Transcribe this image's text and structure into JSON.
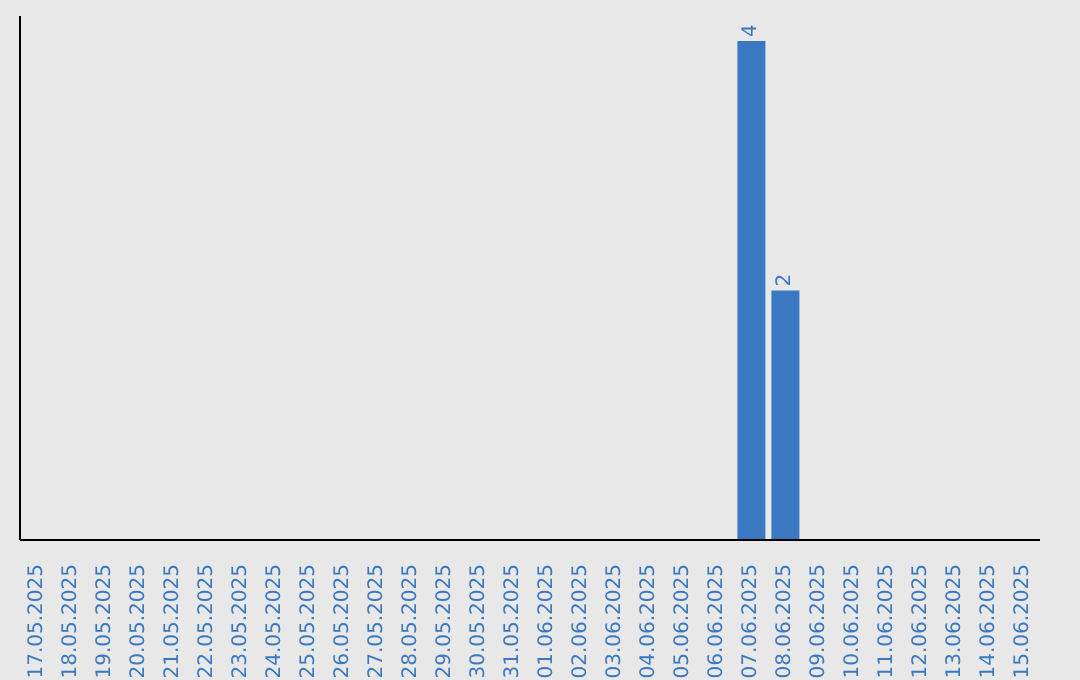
{
  "chart_data": {
    "type": "bar",
    "categories": [
      "17.05.2025",
      "18.05.2025",
      "19.05.2025",
      "20.05.2025",
      "21.05.2025",
      "22.05.2025",
      "23.05.2025",
      "24.05.2025",
      "25.05.2025",
      "26.05.2025",
      "27.05.2025",
      "28.05.2025",
      "29.05.2025",
      "30.05.2025",
      "31.05.2025",
      "01.06.2025",
      "02.06.2025",
      "03.06.2025",
      "04.06.2025",
      "05.06.2025",
      "06.06.2025",
      "07.06.2025",
      "08.06.2025",
      "09.06.2025",
      "10.06.2025",
      "11.06.2025",
      "12.06.2025",
      "13.06.2025",
      "14.06.2025",
      "15.06.2025"
    ],
    "values": [
      null,
      null,
      null,
      null,
      null,
      null,
      null,
      null,
      null,
      null,
      null,
      null,
      null,
      null,
      null,
      null,
      null,
      null,
      null,
      null,
      null,
      4,
      2,
      null,
      null,
      null,
      null,
      null,
      null,
      null
    ],
    "value_labels": [
      null,
      null,
      null,
      null,
      null,
      null,
      null,
      null,
      null,
      null,
      null,
      null,
      null,
      null,
      null,
      null,
      null,
      null,
      null,
      null,
      null,
      "4",
      "2",
      null,
      null,
      null,
      null,
      null,
      null,
      null
    ],
    "color": "#3a78c2",
    "ylim": [
      0,
      4.2
    ],
    "tick_labels": "x",
    "grid": false
  }
}
